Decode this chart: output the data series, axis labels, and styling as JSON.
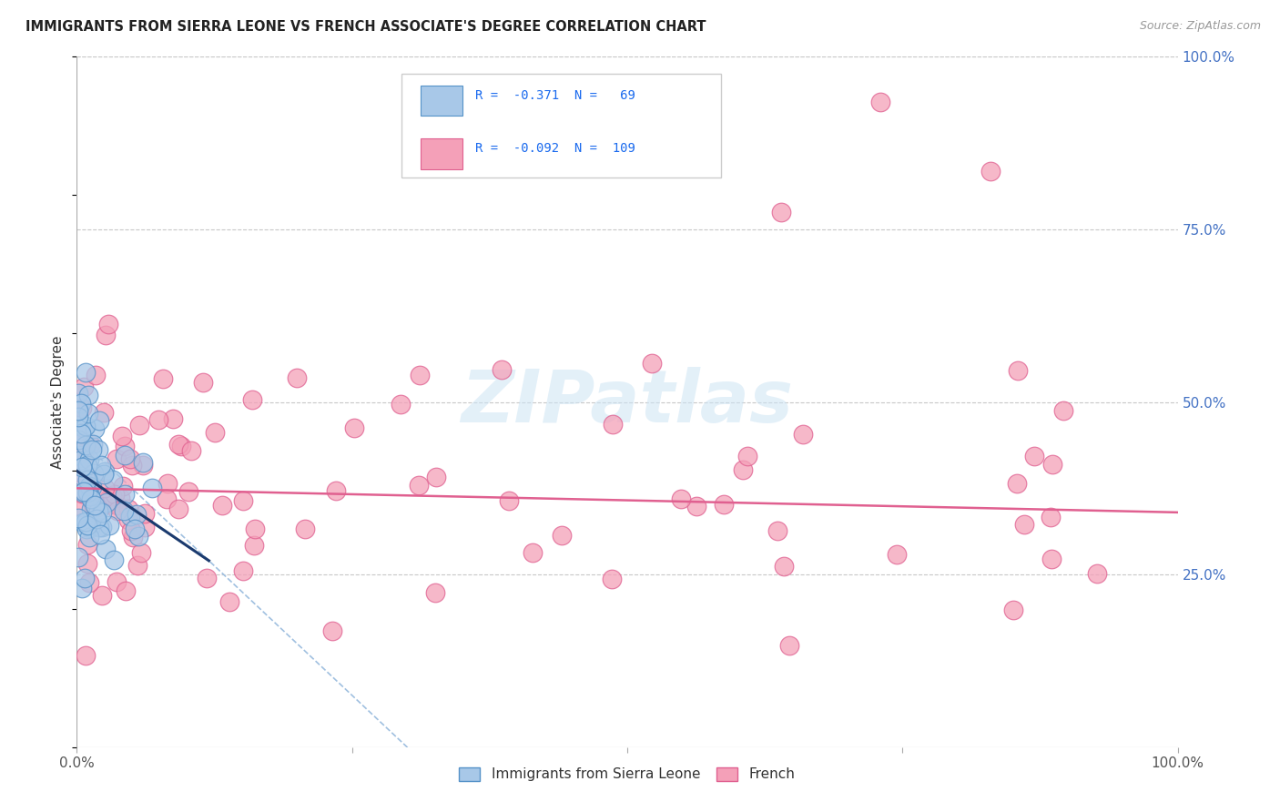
{
  "title": "IMMIGRANTS FROM SIERRA LEONE VS FRENCH ASSOCIATE'S DEGREE CORRELATION CHART",
  "source": "Source: ZipAtlas.com",
  "ylabel": "Associate's Degree",
  "right_yticks": [
    "100.0%",
    "75.0%",
    "50.0%",
    "25.0%"
  ],
  "right_ytick_vals": [
    1.0,
    0.75,
    0.5,
    0.25
  ],
  "legend_bottom_label1": "Immigrants from Sierra Leone",
  "legend_bottom_label2": "French",
  "blue_color": "#a8c8e8",
  "pink_color": "#f4a0b8",
  "blue_edge": "#5592c8",
  "pink_edge": "#e06090",
  "trend_blue": "#1a3a6e",
  "trend_pink": "#e06090",
  "dash_color": "#a0c0e0",
  "watermark_color": "#cce4f4",
  "blue_R": -0.371,
  "blue_N": 69,
  "pink_R": -0.092,
  "pink_N": 109,
  "legend_text_color": "#1a3a8e",
  "legend_r_color": "#1a6aee",
  "right_tick_color": "#4472c4",
  "xtick_color": "#555555"
}
